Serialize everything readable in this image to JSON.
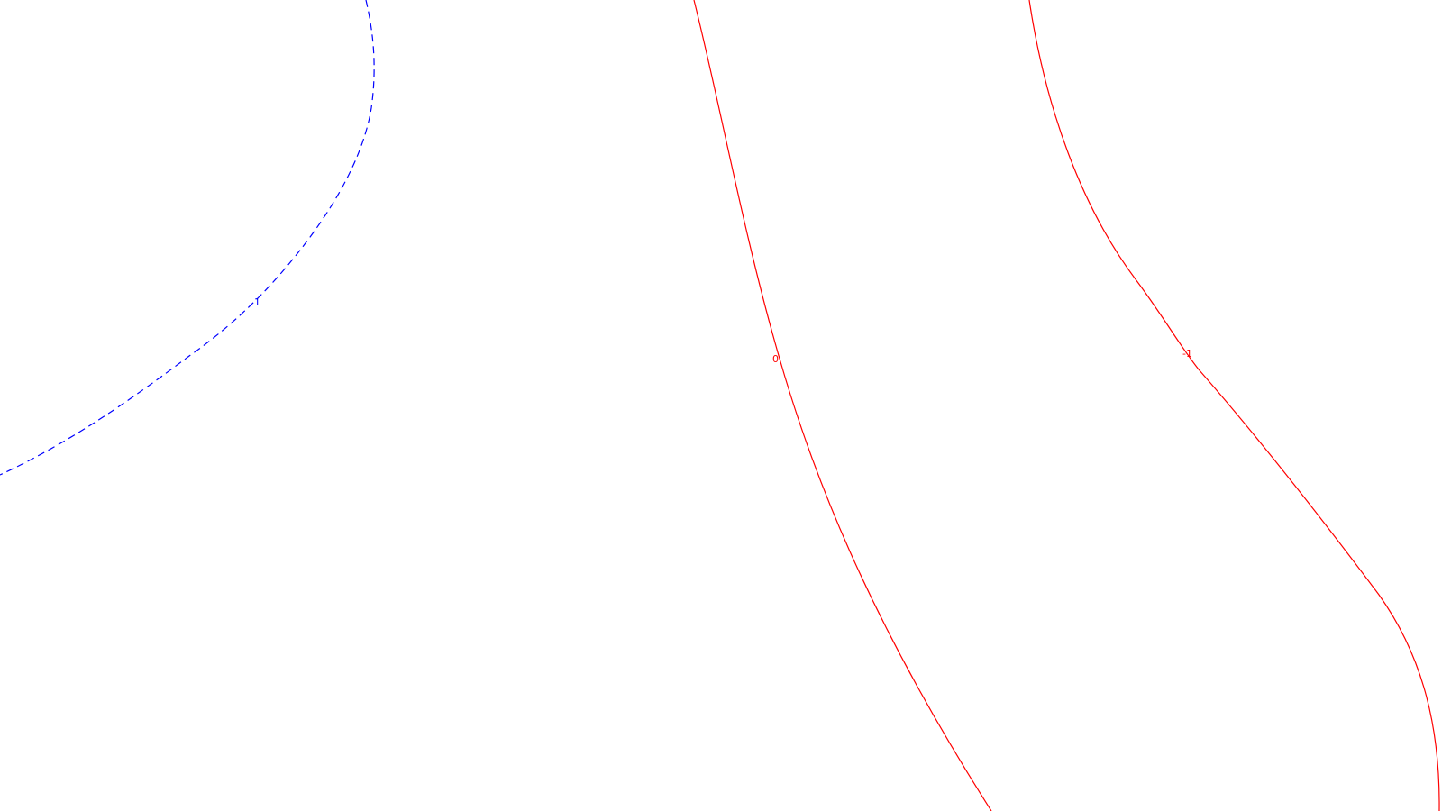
{
  "colors": {
    "background": "#ffffff",
    "positive_contour": "#0000ff",
    "zero_contour": "#ff0000",
    "negative_contour": "#ff0000"
  },
  "contours": [
    {
      "id": "positive",
      "level_label": "1",
      "color": "#0000ff",
      "style": "dashed"
    },
    {
      "id": "zero",
      "level_label": "0",
      "color": "#ff0000",
      "style": "solid"
    },
    {
      "id": "negative",
      "level_label": "-1",
      "color": "#ff0000",
      "style": "solid"
    }
  ]
}
